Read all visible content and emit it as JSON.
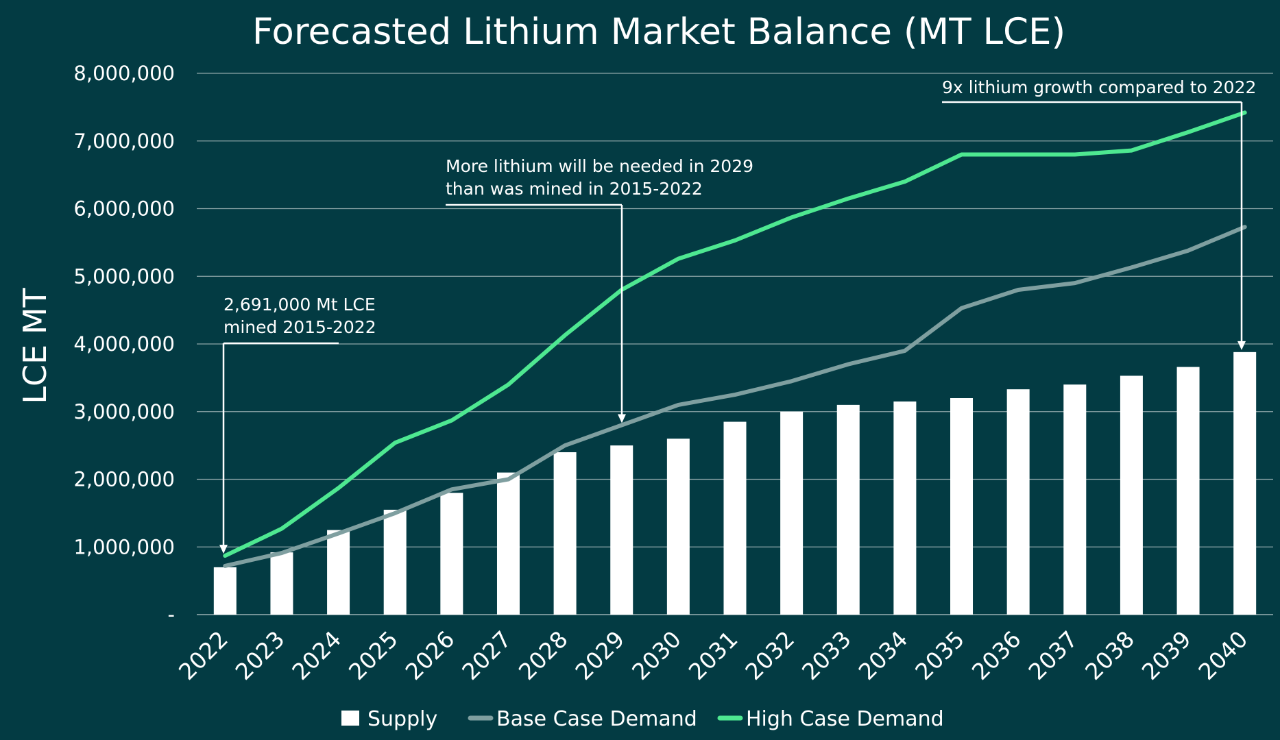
{
  "chart_data": {
    "type": "bar",
    "title": "Forecasted Lithium Market Balance (MT LCE)",
    "ylabel": "LCE MT",
    "xlabel": "",
    "ylim": [
      0,
      8000000
    ],
    "yticks": [
      {
        "value": 0,
        "label": "-"
      },
      {
        "value": 1000000,
        "label": "1,000,000"
      },
      {
        "value": 2000000,
        "label": "2,000,000"
      },
      {
        "value": 3000000,
        "label": "3,000,000"
      },
      {
        "value": 4000000,
        "label": "4,000,000"
      },
      {
        "value": 5000000,
        "label": "5,000,000"
      },
      {
        "value": 6000000,
        "label": "6,000,000"
      },
      {
        "value": 7000000,
        "label": "7,000,000"
      },
      {
        "value": 8000000,
        "label": "8,000,000"
      }
    ],
    "grid": true,
    "legend": "bottom",
    "categories": [
      "2022",
      "2023",
      "2024",
      "2025",
      "2026",
      "2027",
      "2028",
      "2029",
      "2030",
      "2031",
      "2032",
      "2033",
      "2034",
      "2035",
      "2036",
      "2037",
      "2038",
      "2039",
      "2040"
    ],
    "series": [
      {
        "name": "Supply",
        "type": "bar",
        "color": "#ffffff",
        "values": [
          700000,
          920000,
          1250000,
          1550000,
          1800000,
          2100000,
          2400000,
          2500000,
          2600000,
          2850000,
          3000000,
          3100000,
          3150000,
          3200000,
          3330000,
          3400000,
          3530000,
          3660000,
          3880000
        ]
      },
      {
        "name": "Base Case Demand",
        "type": "line",
        "color": "#7f9fa0",
        "values": [
          720000,
          910000,
          1200000,
          1500000,
          1850000,
          2000000,
          2500000,
          2800000,
          3100000,
          3250000,
          3450000,
          3700000,
          3900000,
          4530000,
          4800000,
          4900000,
          5130000,
          5380000,
          5730000
        ]
      },
      {
        "name": "High Case Demand",
        "type": "line",
        "color": "#4ee891",
        "values": [
          870000,
          1270000,
          1870000,
          2540000,
          2870000,
          3400000,
          4130000,
          4800000,
          5260000,
          5530000,
          5870000,
          6150000,
          6400000,
          6800000,
          6800000,
          6800000,
          6860000,
          7130000,
          7420000
        ]
      }
    ],
    "annotations": [
      {
        "lines": [
          "2,691,000 Mt LCE",
          "mined 2015-2022"
        ],
        "target_category": "2022",
        "target_value": 870000
      },
      {
        "lines": [
          "More lithium will be needed in 2029",
          "than was mined in 2015-2022"
        ],
        "target_category": "2029",
        "target_value": 2800000
      },
      {
        "lines": [
          "9x lithium growth compared to 2022"
        ],
        "target_category": "2040",
        "target_value": 3880000
      }
    ]
  }
}
